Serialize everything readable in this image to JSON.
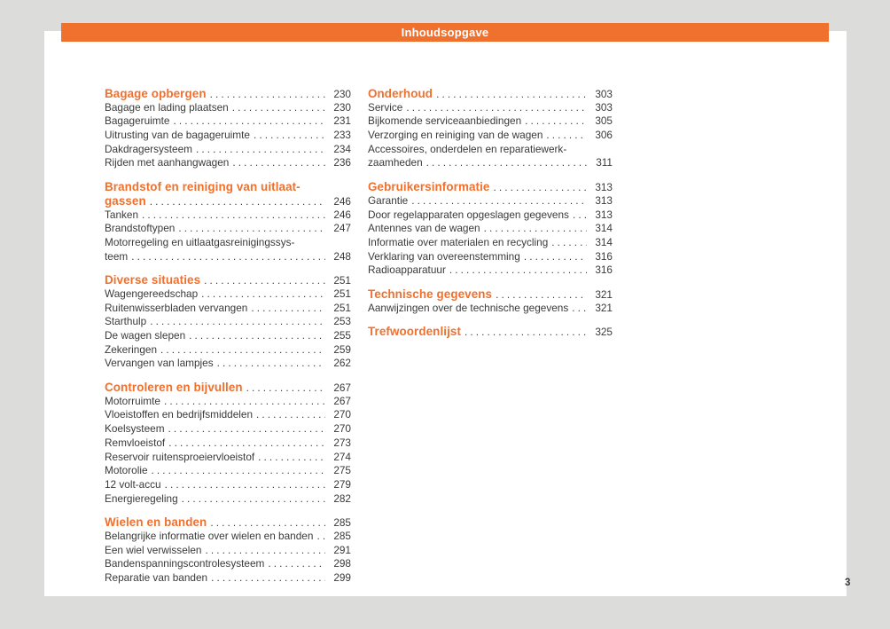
{
  "header": {
    "title": "Inhoudsopgave"
  },
  "page_number": "3",
  "colors": {
    "accent": "#F0702E",
    "background": "#DCDCDB",
    "page": "#FFFFFF",
    "text": "#3A3A39"
  },
  "columns": [
    {
      "sections": [
        {
          "title": "Bagage opbergen",
          "page": "230",
          "entries": [
            {
              "label": "Bagage en lading plaatsen",
              "page": "230"
            },
            {
              "label": "Bagageruimte",
              "page": "231"
            },
            {
              "label": "Uitrusting van de bagageruimte",
              "page": "233"
            },
            {
              "label": "Dakdragersysteem",
              "page": "234"
            },
            {
              "label": "Rijden met aanhangwagen",
              "page": "236"
            }
          ]
        },
        {
          "title": "Brandstof en reiniging van uitlaat-",
          "title_line2": "gassen",
          "page": "246",
          "entries": [
            {
              "label": "Tanken",
              "page": "246"
            },
            {
              "label": "Brandstoftypen",
              "page": "247"
            },
            {
              "label": "Motorregeling en uitlaatgasreinigingssys-",
              "label_line2": "teem",
              "page": "248"
            }
          ]
        },
        {
          "title": "Diverse situaties",
          "page": "251",
          "entries": [
            {
              "label": "Wagengereedschap",
              "page": "251"
            },
            {
              "label": "Ruitenwisserbladen vervangen",
              "page": "251"
            },
            {
              "label": "Starthulp",
              "page": "253"
            },
            {
              "label": "De wagen slepen",
              "page": "255"
            },
            {
              "label": "Zekeringen",
              "page": "259"
            },
            {
              "label": "Vervangen van lampjes",
              "page": "262"
            }
          ]
        },
        {
          "title": "Controleren en bijvullen",
          "page": "267",
          "entries": [
            {
              "label": "Motorruimte",
              "page": "267"
            },
            {
              "label": "Vloeistoffen en bedrijfsmiddelen",
              "page": "270"
            },
            {
              "label": "Koelsysteem",
              "page": "270"
            },
            {
              "label": "Remvloeistof",
              "page": "273"
            },
            {
              "label": "Reservoir ruitensproeiervloeistof",
              "page": "274"
            },
            {
              "label": "Motorolie",
              "page": "275"
            },
            {
              "label": "12 volt-accu",
              "page": "279"
            },
            {
              "label": "Energieregeling",
              "page": "282"
            }
          ]
        },
        {
          "title": "Wielen en banden",
          "page": "285",
          "entries": [
            {
              "label": "Belangrijke informatie over wielen en banden",
              "page": "285"
            },
            {
              "label": "Een wiel verwisselen",
              "page": "291"
            },
            {
              "label": "Bandenspanningscontrolesysteem",
              "page": "298"
            },
            {
              "label": "Reparatie van banden",
              "page": "299"
            }
          ]
        }
      ]
    },
    {
      "sections": [
        {
          "title": "Onderhoud",
          "page": "303",
          "entries": [
            {
              "label": "Service",
              "page": "303"
            },
            {
              "label": "Bijkomende serviceaanbiedingen",
              "page": "305"
            },
            {
              "label": "Verzorging en reiniging van de wagen",
              "page": "306"
            },
            {
              "label": "Accessoires, onderdelen en reparatiewerk-",
              "label_line2": "zaamheden",
              "page": "311"
            }
          ]
        },
        {
          "title": "Gebruikersinformatie",
          "page": "313",
          "entries": [
            {
              "label": "Garantie",
              "page": "313"
            },
            {
              "label": "Door regelapparaten opgeslagen gegevens",
              "page": "313"
            },
            {
              "label": "Antennes van de wagen",
              "page": "314"
            },
            {
              "label": "Informatie over materialen en recycling",
              "page": "314"
            },
            {
              "label": "Verklaring van overeenstemming",
              "page": "316"
            },
            {
              "label": "Radioapparatuur",
              "page": "316"
            }
          ]
        },
        {
          "title": "Technische gegevens",
          "page": "321",
          "entries": [
            {
              "label": "Aanwijzingen over de technische gegevens",
              "page": "321"
            }
          ]
        },
        {
          "title": "Trefwoordenlijst",
          "page": "325",
          "entries": []
        }
      ]
    }
  ]
}
